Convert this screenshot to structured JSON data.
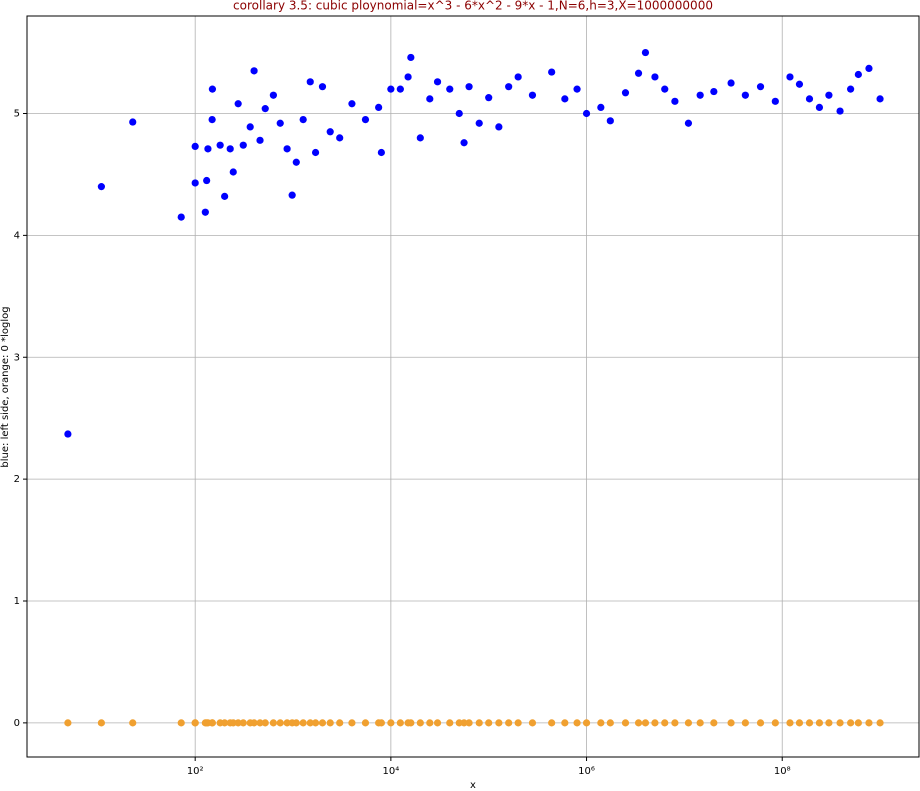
{
  "chart_data": {
    "type": "scatter",
    "title": "corollary 3.5: cubic ploynomial=x^3 - 6*x^2 - 9*x - 1,N=6,h=3,X=1000000000",
    "x_label": "x",
    "y_label": "blue: left side, orange: 0 *loglog",
    "xscale": "log",
    "grid": true,
    "xlim": [
      1.91,
      2500000000
    ],
    "ylim": [
      -0.28,
      5.8
    ],
    "xticks": [
      {
        "value": 100,
        "label": "10²"
      },
      {
        "value": 10000,
        "label": "10⁴"
      },
      {
        "value": 1000000,
        "label": "10⁶"
      },
      {
        "value": 100000000,
        "label": "10⁸"
      }
    ],
    "yticks": [
      0,
      1,
      2,
      3,
      4,
      5
    ],
    "x": [
      5,
      11,
      23,
      72,
      100,
      100,
      127,
      131,
      135,
      149,
      150,
      180,
      200,
      228,
      245,
      275,
      310,
      365,
      400,
      460,
      520,
      630,
      740,
      870,
      980,
      1080,
      1270,
      1500,
      1700,
      2000,
      2400,
      3000,
      4000,
      5500,
      7500,
      8000,
      10000,
      12500,
      15000,
      16000,
      20000,
      25000,
      30000,
      40000,
      50000,
      56000,
      63000,
      80000,
      100000,
      127000,
      160000,
      200000,
      280000,
      440000,
      600000,
      800000,
      1000000,
      1400000,
      1750000,
      2500000,
      3400000,
      4000000,
      5000000,
      6300000,
      8000000,
      11000000,
      14500000,
      20000000,
      30000000,
      42000000,
      60000000,
      85000000,
      120000000,
      150000000,
      190000000,
      240000000,
      300000000,
      390000000,
      500000000,
      600000000,
      770000000,
      1000000000
    ],
    "series": [
      {
        "name": "left side",
        "color": "#0000ff",
        "values": [
          2.37,
          4.4,
          4.93,
          4.15,
          4.73,
          4.43,
          4.19,
          4.45,
          4.71,
          4.95,
          5.2,
          4.74,
          4.32,
          4.71,
          4.52,
          5.08,
          4.74,
          4.89,
          5.35,
          4.78,
          5.04,
          5.15,
          4.92,
          4.71,
          4.33,
          4.6,
          4.95,
          5.26,
          4.68,
          5.22,
          4.85,
          4.8,
          5.08,
          4.95,
          5.05,
          4.68,
          5.2,
          5.2,
          5.3,
          5.46,
          4.8,
          5.12,
          5.26,
          5.2,
          5.0,
          4.76,
          5.22,
          4.92,
          5.13,
          4.89,
          5.22,
          5.3,
          5.15,
          5.34,
          5.12,
          5.2,
          5.0,
          5.05,
          4.94,
          5.17,
          5.33,
          5.5,
          5.3,
          5.2,
          5.1,
          4.92,
          5.15,
          5.18,
          5.25,
          5.15,
          5.22,
          5.1,
          5.3,
          5.24,
          5.12,
          5.05,
          5.15,
          5.02,
          5.2,
          5.32,
          5.37,
          5.12
        ]
      },
      {
        "name": "0",
        "color": "#f0a030",
        "values": [
          0,
          0,
          0,
          0,
          0,
          0,
          0,
          0,
          0,
          0,
          0,
          0,
          0,
          0,
          0,
          0,
          0,
          0,
          0,
          0,
          0,
          0,
          0,
          0,
          0,
          0,
          0,
          0,
          0,
          0,
          0,
          0,
          0,
          0,
          0,
          0,
          0,
          0,
          0,
          0,
          0,
          0,
          0,
          0,
          0,
          0,
          0,
          0,
          0,
          0,
          0,
          0,
          0,
          0,
          0,
          0,
          0,
          0,
          0,
          0,
          0,
          0,
          0,
          0,
          0,
          0,
          0,
          0,
          0,
          0,
          0,
          0,
          0,
          0,
          0,
          0,
          0,
          0,
          0,
          0,
          0,
          0
        ]
      }
    ]
  }
}
